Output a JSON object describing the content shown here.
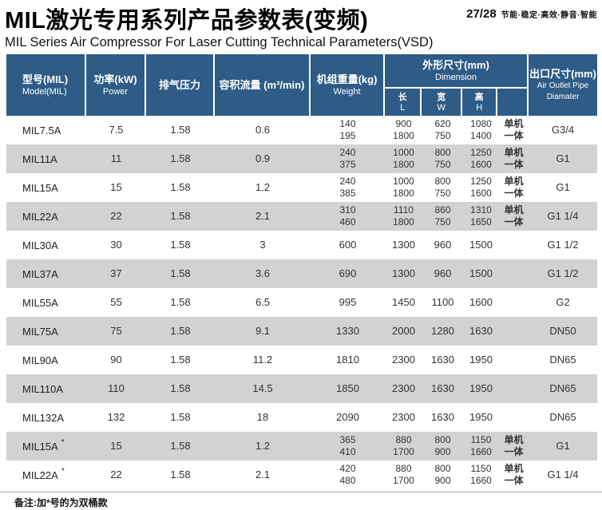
{
  "page": {
    "title": "MIL激光专用系列产品参数表(变频)",
    "subtitle": "MIL Series Air Compressor For Laser Cutting  Technical Parameters(VSD)",
    "page_number": "27/28",
    "tagline": "节能·稳定·高效·静音·智能",
    "footnote": "备注:加*号的为双桶款"
  },
  "colors": {
    "header_bg": "#2e5c86",
    "stripe_bg": "#d2d2d2"
  },
  "table": {
    "headers": {
      "model": {
        "cn": "型号(MIL)",
        "en": "Model(MIL)"
      },
      "power": {
        "cn": "功率(kW)",
        "en": "Power"
      },
      "pressure": {
        "cn": "排气压力"
      },
      "flow": {
        "cn": "容积流量 (m³/min)"
      },
      "weight": {
        "cn": "机组重量(kg)",
        "en": "Weight"
      },
      "dimension": {
        "cn": "外形尺寸(mm)",
        "en": "Dimension"
      },
      "dim_l": {
        "cn": "长",
        "en": "L"
      },
      "dim_w": {
        "cn": "宽",
        "en": "W"
      },
      "dim_h": {
        "cn": "高",
        "en": "H"
      },
      "outlet": {
        "cn": "出口尺寸(mm)",
        "en": "Air Outlet Pipe Diamater"
      }
    },
    "rows": [
      {
        "model": "MIL7.5A",
        "star": false,
        "power": "7.5",
        "pressure": "1.58",
        "flow": "0.6",
        "weight": [
          "140",
          "195"
        ],
        "length": [
          "900",
          "1800"
        ],
        "width": [
          "620",
          "750"
        ],
        "height": [
          "1080",
          "1400"
        ],
        "unit_type": [
          "单机",
          "一体"
        ],
        "outlet": "G3/4"
      },
      {
        "model": "MIL11A",
        "star": false,
        "power": "11",
        "pressure": "1.58",
        "flow": "0.9",
        "weight": [
          "240",
          "375"
        ],
        "length": [
          "1000",
          "1800"
        ],
        "width": [
          "800",
          "750"
        ],
        "height": [
          "1250",
          "1600"
        ],
        "unit_type": [
          "单机",
          "一体"
        ],
        "outlet": "G1"
      },
      {
        "model": "MIL15A",
        "star": false,
        "power": "15",
        "pressure": "1.58",
        "flow": "1.2",
        "weight": [
          "240",
          "385"
        ],
        "length": [
          "1000",
          "1800"
        ],
        "width": [
          "800",
          "750"
        ],
        "height": [
          "1250",
          "1600"
        ],
        "unit_type": [
          "单机",
          "一体"
        ],
        "outlet": "G1"
      },
      {
        "model": "MIL22A",
        "star": false,
        "power": "22",
        "pressure": "1.58",
        "flow": "2.1",
        "weight": [
          "310",
          "460"
        ],
        "length": [
          "1110",
          "1800"
        ],
        "width": [
          "860",
          "750"
        ],
        "height": [
          "1310",
          "1650"
        ],
        "unit_type": [
          "单机",
          "一体"
        ],
        "outlet": "G1 1/4"
      },
      {
        "model": "MIL30A",
        "star": false,
        "power": "30",
        "pressure": "1.58",
        "flow": "3",
        "weight": [
          "600"
        ],
        "length": [
          "1300"
        ],
        "width": [
          "960"
        ],
        "height": [
          "1500"
        ],
        "unit_type": [],
        "outlet": "G1 1/2"
      },
      {
        "model": "MIL37A",
        "star": false,
        "power": "37",
        "pressure": "1.58",
        "flow": "3.6",
        "weight": [
          "690"
        ],
        "length": [
          "1300"
        ],
        "width": [
          "960"
        ],
        "height": [
          "1500"
        ],
        "unit_type": [],
        "outlet": "G1 1/2"
      },
      {
        "model": "MIL55A",
        "star": false,
        "power": "55",
        "pressure": "1.58",
        "flow": "6.5",
        "weight": [
          "995"
        ],
        "length": [
          "1450"
        ],
        "width": [
          "1100"
        ],
        "height": [
          "1600"
        ],
        "unit_type": [],
        "outlet": "G2"
      },
      {
        "model": "MIL75A",
        "star": false,
        "power": "75",
        "pressure": "1.58",
        "flow": "9.1",
        "weight": [
          "1330"
        ],
        "length": [
          "2000"
        ],
        "width": [
          "1280"
        ],
        "height": [
          "1630"
        ],
        "unit_type": [],
        "outlet": "DN50"
      },
      {
        "model": "MIL90A",
        "star": false,
        "power": "90",
        "pressure": "1.58",
        "flow": "11.2",
        "weight": [
          "1810"
        ],
        "length": [
          "2300"
        ],
        "width": [
          "1630"
        ],
        "height": [
          "1950"
        ],
        "unit_type": [],
        "outlet": "DN65"
      },
      {
        "model": "MIL110A",
        "star": false,
        "power": "110",
        "pressure": "1.58",
        "flow": "14.5",
        "weight": [
          "1850"
        ],
        "length": [
          "2300"
        ],
        "width": [
          "1630"
        ],
        "height": [
          "1950"
        ],
        "unit_type": [],
        "outlet": "DN65"
      },
      {
        "model": "MIL132A",
        "star": false,
        "power": "132",
        "pressure": "1.58",
        "flow": "18",
        "weight": [
          "2090"
        ],
        "length": [
          "2300"
        ],
        "width": [
          "1630"
        ],
        "height": [
          "1950"
        ],
        "unit_type": [],
        "outlet": "DN65"
      },
      {
        "model": "MIL15A",
        "star": true,
        "power": "15",
        "pressure": "1.58",
        "flow": "1.2",
        "weight": [
          "365",
          "410"
        ],
        "length": [
          "880",
          "1700"
        ],
        "width": [
          "800",
          "900"
        ],
        "height": [
          "1150",
          "1660"
        ],
        "unit_type": [
          "单机",
          "一体"
        ],
        "outlet": "G1"
      },
      {
        "model": "MIL22A",
        "star": true,
        "power": "22",
        "pressure": "1.58",
        "flow": "2.1",
        "weight": [
          "420",
          "480"
        ],
        "length": [
          "880",
          "1700"
        ],
        "width": [
          "800",
          "900"
        ],
        "height": [
          "1150",
          "1660"
        ],
        "unit_type": [
          "单机",
          "一体"
        ],
        "outlet": "G1 1/4"
      }
    ]
  }
}
